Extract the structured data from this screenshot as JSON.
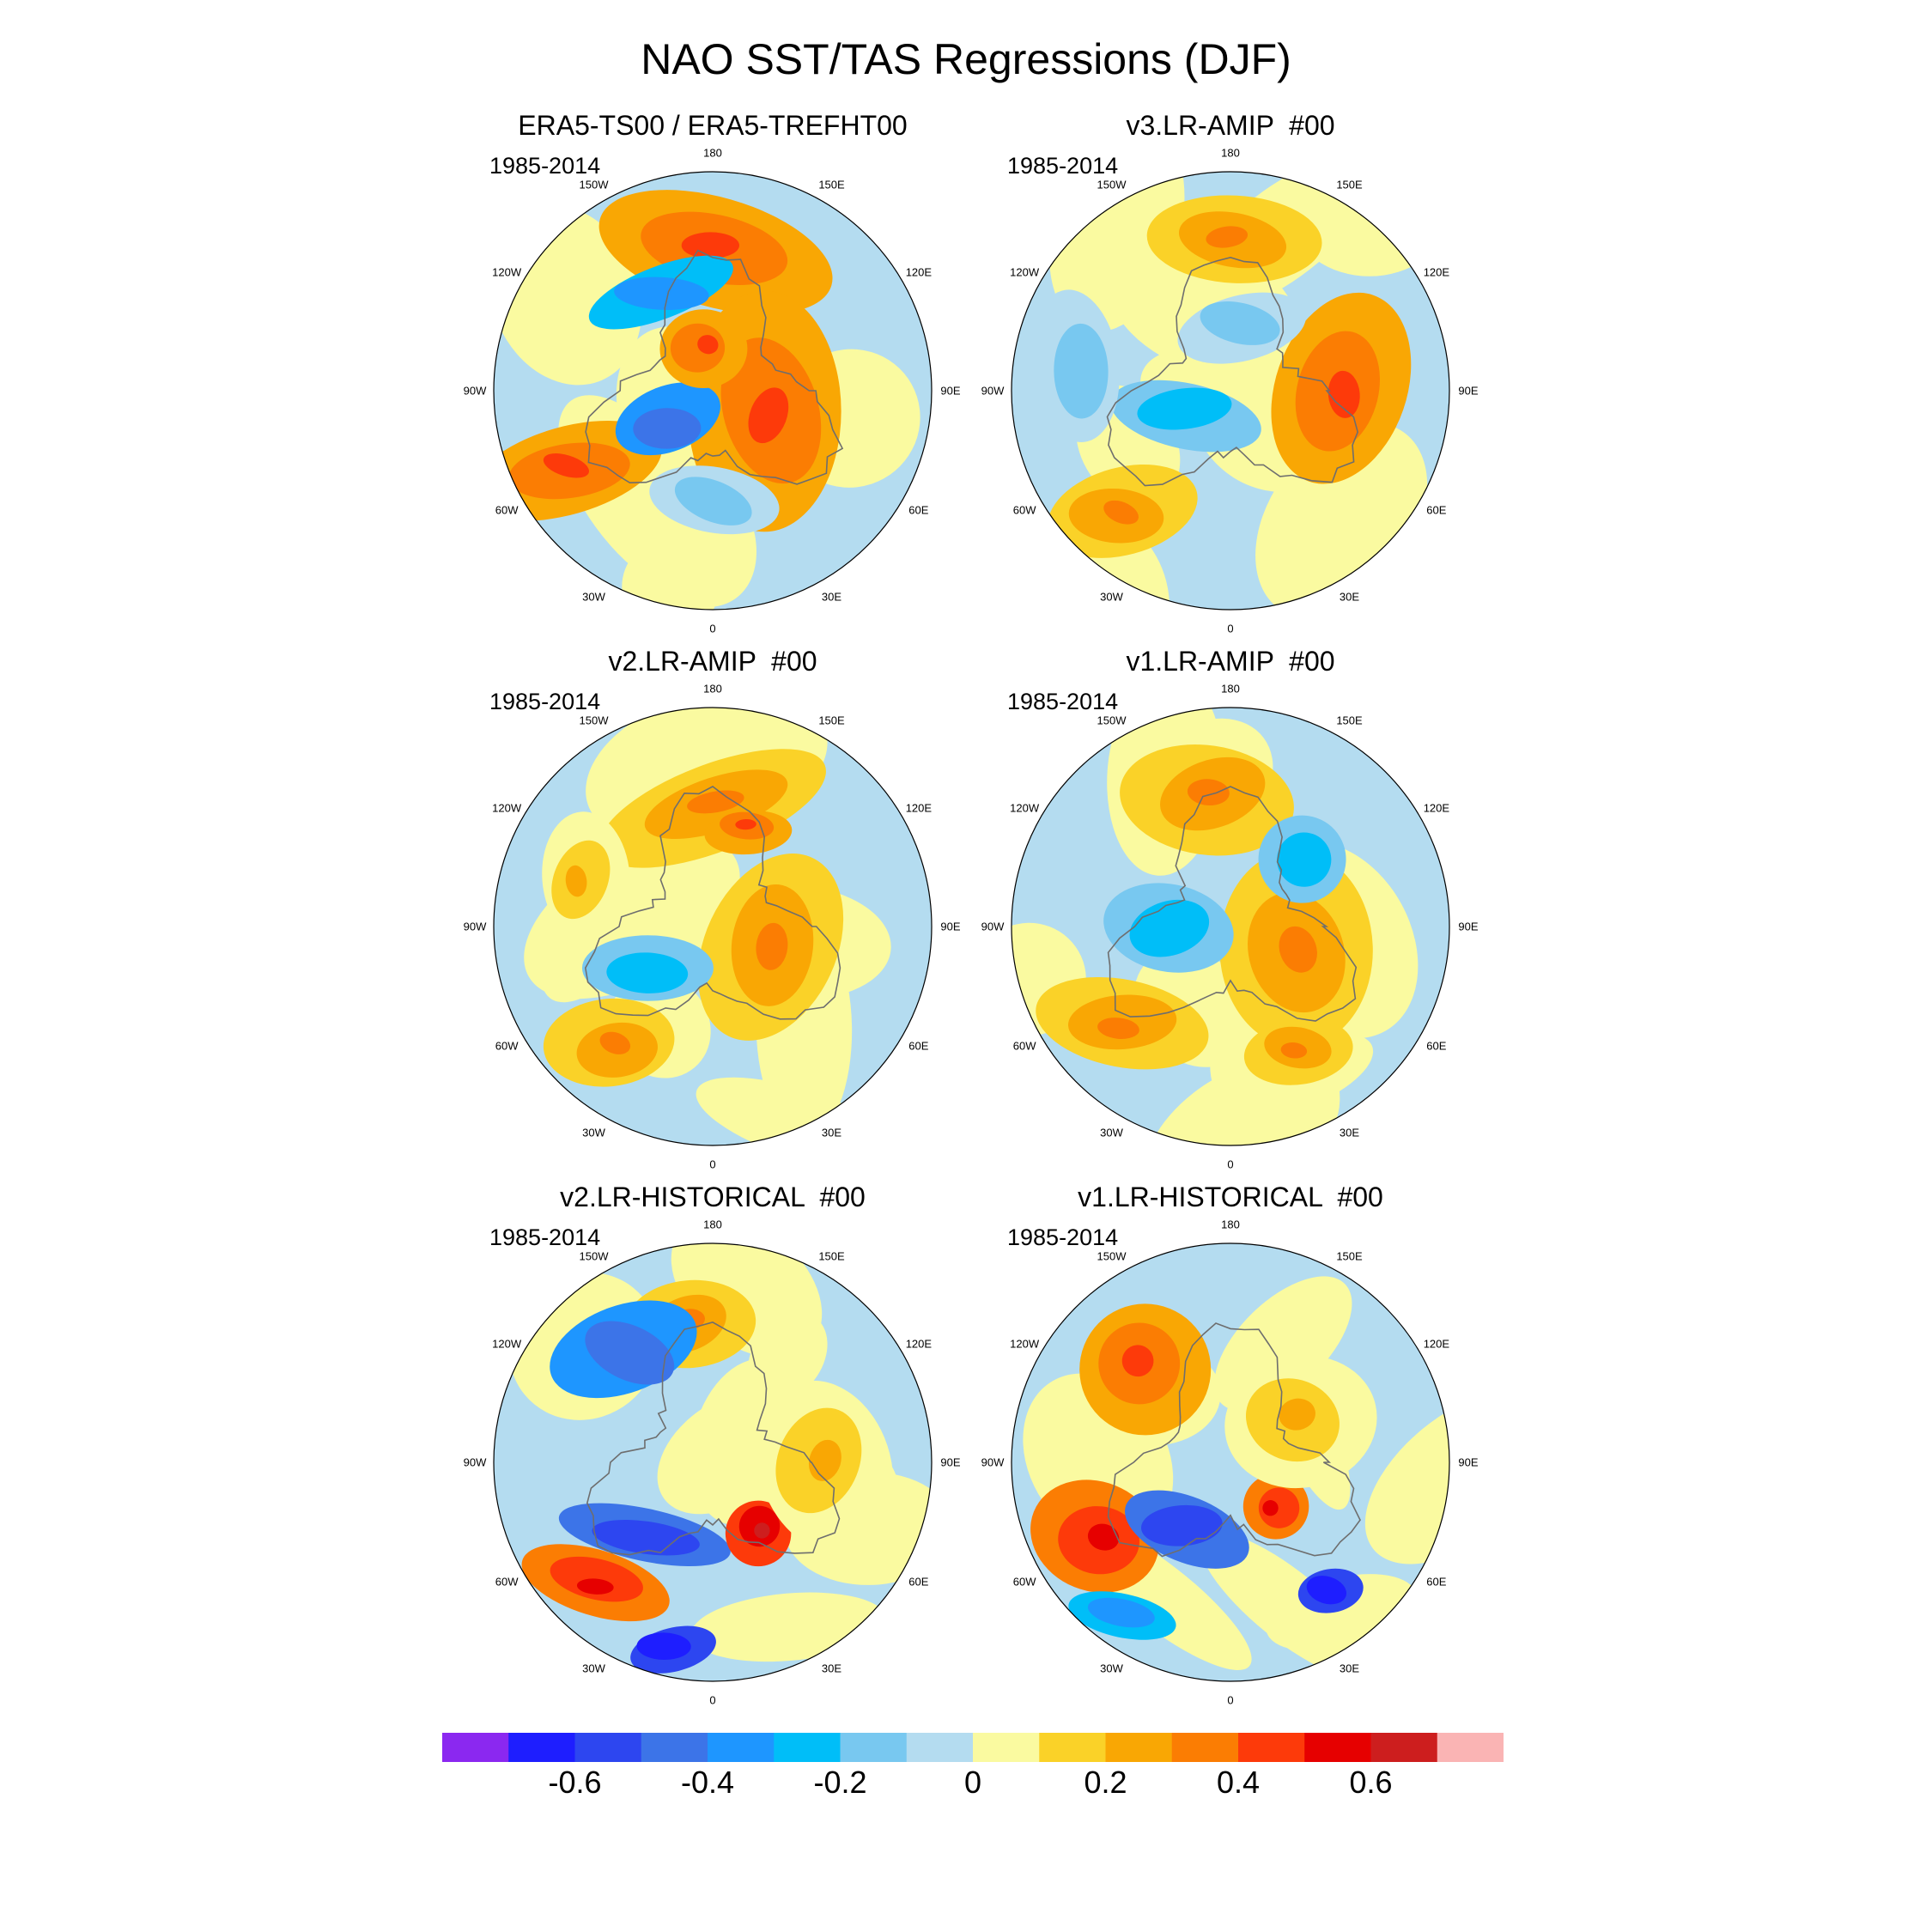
{
  "title": "NAO SST/TAS Regressions (DJF)",
  "panels": [
    {
      "title": "ERA5-TS00 / ERA5-TREFHT00",
      "period": "1985-2014"
    },
    {
      "title": "v3.LR-AMIP  #00",
      "period": "1985-2014"
    },
    {
      "title": "v2.LR-AMIP  #00",
      "period": "1985-2014"
    },
    {
      "title": "v1.LR-AMIP  #00",
      "period": "1985-2014"
    },
    {
      "title": "v2.LR-HISTORICAL  #00",
      "period": "1985-2014"
    },
    {
      "title": "v1.LR-HISTORICAL  #00",
      "period": "1985-2014"
    }
  ],
  "lon_labels": [
    "180",
    "150E",
    "120E",
    "90E",
    "60E",
    "30E",
    "0",
    "30W",
    "60W",
    "90W",
    "120W",
    "150W"
  ],
  "chart_data": {
    "type": "heatmap",
    "projection": "north polar stereographic",
    "variable": "NAO SST/TAS regression",
    "season": "DJF",
    "colorbar": {
      "colors": [
        "#8b28f0",
        "#1e1eff",
        "#2d46f0",
        "#3c74e8",
        "#1e96ff",
        "#00bef8",
        "#78c8f0",
        "#b4dcf0",
        "#fafaa0",
        "#fad228",
        "#f9a704",
        "#fb7d03",
        "#fd3a0a",
        "#e60000",
        "#cd1e1e",
        "#fab4b4"
      ],
      "tick_labels": [
        "-0.6",
        "-0.4",
        "-0.2",
        "0",
        "0.2",
        "0.4",
        "0.6"
      ],
      "tick_values": [
        -0.6,
        -0.4,
        -0.2,
        0,
        0.2,
        0.4,
        0.6
      ]
    }
  }
}
